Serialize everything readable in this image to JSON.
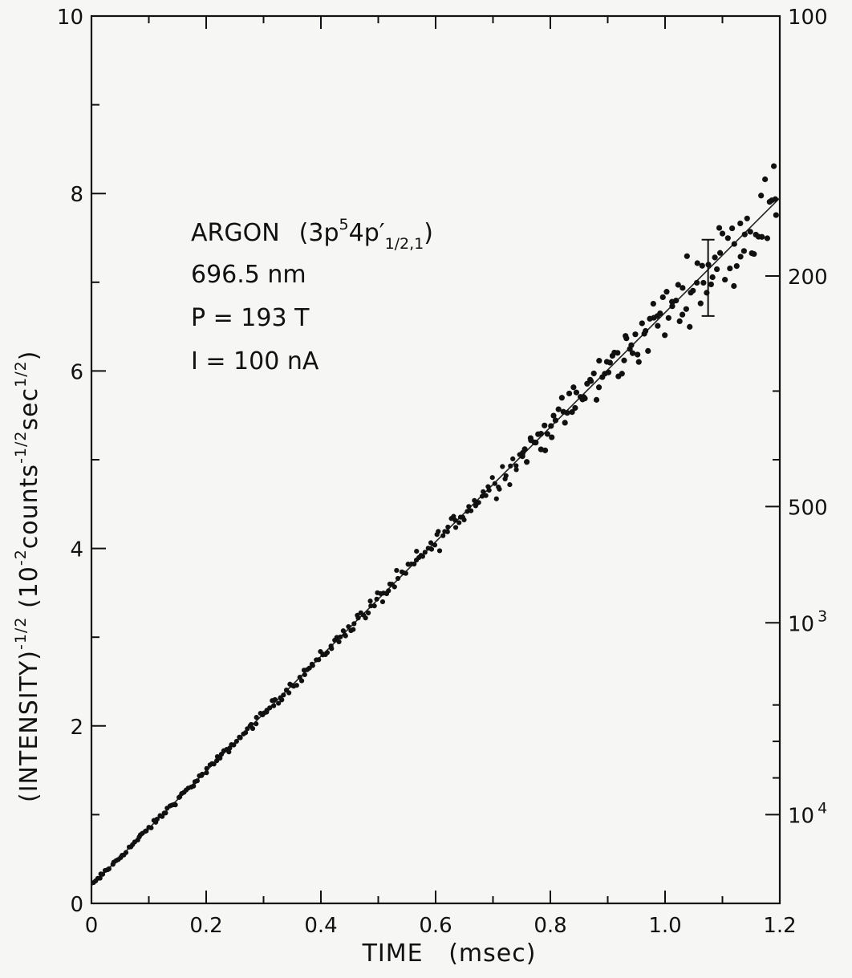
{
  "chart_data": {
    "type": "scatter",
    "title": "",
    "xlabel": "TIME   (msec)",
    "ylabel": "(INTENSITY)",
    "ylabel_exponent": "-1/2",
    "ylabel_units_prefix": "(10",
    "ylabel_units_exp1": "-2",
    "ylabel_units_mid": "counts",
    "ylabel_units_exp2": "-1/2",
    "ylabel_units_sec": "sec",
    "ylabel_units_exp3": "1/2",
    "ylabel_units_suffix": ")",
    "xlim": [
      0,
      1.2
    ],
    "ylim": [
      0,
      10
    ],
    "x_ticks": [
      {
        "value": 0,
        "label": "0"
      },
      {
        "value": 0.2,
        "label": "0.2"
      },
      {
        "value": 0.4,
        "label": "0.4"
      },
      {
        "value": 0.6,
        "label": "0.6"
      },
      {
        "value": 0.8,
        "label": "0.8"
      },
      {
        "value": 1.0,
        "label": "1.0"
      },
      {
        "value": 1.2,
        "label": "1.2"
      }
    ],
    "y_ticks": [
      {
        "value": 0,
        "label": "0"
      },
      {
        "value": 2,
        "label": "2"
      },
      {
        "value": 4,
        "label": "4"
      },
      {
        "value": 6,
        "label": "6"
      },
      {
        "value": 8,
        "label": "8"
      },
      {
        "value": 10,
        "label": "10"
      }
    ],
    "right_axis": {
      "scale": "intensity = (y*100)^-2 ... shown as reciprocal of y squared",
      "ticks": [
        {
          "intensity": 100,
          "label": "100"
        },
        {
          "intensity": 200,
          "label": "200"
        },
        {
          "intensity": 500,
          "label": "500"
        },
        {
          "intensity": 1000,
          "label": "10",
          "exp": "3"
        },
        {
          "intensity": 10000,
          "label": "10",
          "exp": "4"
        }
      ]
    },
    "annotations": {
      "species": "ARGON",
      "state_prefix": "(3p",
      "state_exp": "5",
      "state_mid": "4p",
      "state_prime": "′",
      "state_sub": "1/2,1",
      "state_suffix": ")",
      "wavelength": "696.5 nm",
      "pressure": "P = 193 T",
      "current": "I = 100 nA"
    },
    "fit_line": {
      "x": [
        0,
        1.2
      ],
      "y": [
        0.2,
        7.95
      ]
    },
    "error_bar": {
      "x": 1.075,
      "y": 7.05,
      "low": 6.62,
      "high": 7.48
    },
    "grid": false,
    "legend": "none",
    "point_color": "#111111",
    "line_color": "#222222"
  }
}
